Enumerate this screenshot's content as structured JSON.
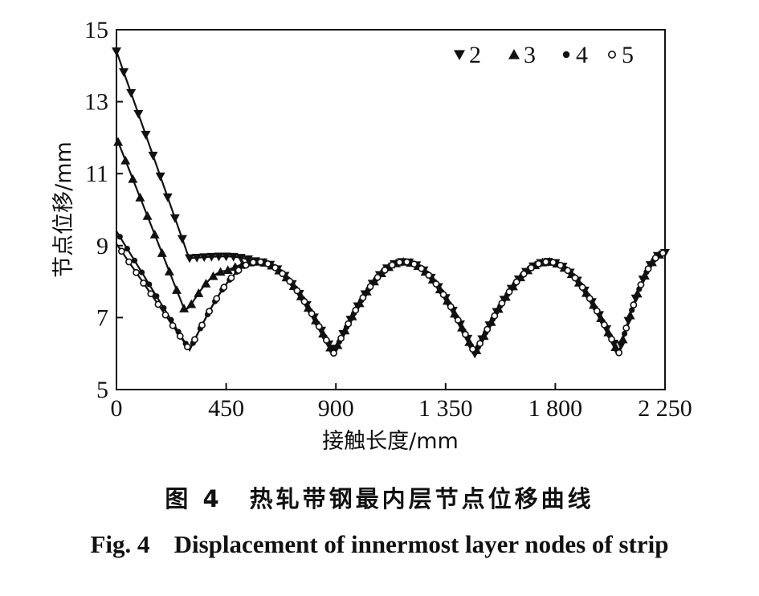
{
  "chart_data": {
    "type": "line",
    "xlabel": "接触长度/mm",
    "ylabel": "节点位移/mm",
    "xlim": [
      0,
      2250
    ],
    "ylim": [
      5,
      15
    ],
    "x_ticks": [
      0,
      450,
      900,
      1350,
      1800,
      2250
    ],
    "x_tick_labels": [
      "0",
      "450",
      "900",
      "1 350",
      "1 800",
      "2 250"
    ],
    "y_ticks": [
      5,
      7,
      9,
      11,
      13,
      15
    ],
    "y_tick_labels": [
      "5",
      "7",
      "9",
      "11",
      "13",
      "15"
    ],
    "grid": false,
    "legend_position": "top-right",
    "series": [
      {
        "name": "2",
        "marker": "triangle-down",
        "x": [
          0,
          290,
          300,
          450,
          580,
          890,
          1180,
          1470,
          1770,
          2060,
          2250
        ],
        "y": [
          14.4,
          8.8,
          8.65,
          8.7,
          8.55,
          6.0,
          8.55,
          6.0,
          8.55,
          6.0,
          8.8
        ]
      },
      {
        "name": "3",
        "marker": "triangle-up",
        "x": [
          0,
          280,
          300,
          450,
          580,
          890,
          1180,
          1470,
          1770,
          2060,
          2250
        ],
        "y": [
          12.0,
          7.2,
          7.3,
          8.3,
          8.55,
          6.0,
          8.55,
          6.0,
          8.55,
          6.0,
          8.8
        ]
      },
      {
        "name": "4",
        "marker": "dot",
        "x": [
          0,
          300,
          580,
          890,
          1180,
          1470,
          1770,
          2060,
          2250
        ],
        "y": [
          9.4,
          6.1,
          8.55,
          6.0,
          8.55,
          6.0,
          8.55,
          6.0,
          8.8
        ]
      },
      {
        "name": "5",
        "marker": "circle",
        "x": [
          0,
          300,
          580,
          890,
          1180,
          1470,
          1770,
          2060,
          2250
        ],
        "y": [
          9.05,
          6.1,
          8.55,
          6.0,
          8.55,
          6.0,
          8.55,
          6.0,
          8.8
        ]
      }
    ]
  },
  "caption": {
    "cn_num": "图 4",
    "cn_text": "热轧带钢最内层节点位移曲线",
    "en_num": "Fig. 4",
    "en_text": "Displacement of innermost layer nodes of strip"
  }
}
